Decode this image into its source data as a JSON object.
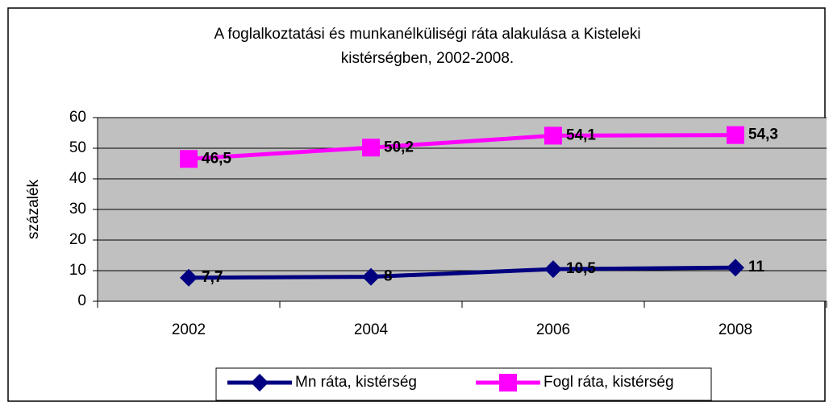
{
  "chart_data": {
    "type": "line",
    "title": "A foglalkoztatási és munkanélküliségi ráta alakulása a Kisteleki",
    "subtitle": "kistérségben, 2002-2008.",
    "y_label": "százalék",
    "categories": [
      "2002",
      "2004",
      "2006",
      "2008"
    ],
    "series": [
      {
        "name": "Mn ráta, kistérség",
        "color": "#000080",
        "marker": "diamond",
        "values": [
          7.7,
          8,
          10.5,
          11
        ],
        "value_labels": [
          "7,7",
          "8",
          "10,5",
          "11"
        ]
      },
      {
        "name": "Fogl ráta, kistérség",
        "color": "#ff00ff",
        "marker": "square",
        "values": [
          46.5,
          50.2,
          54.1,
          54.3
        ],
        "value_labels": [
          "46,5",
          "50,2",
          "54,1",
          "54,3"
        ]
      }
    ],
    "ylim": [
      0,
      60
    ],
    "yticks": [
      0,
      10,
      20,
      30,
      40,
      50,
      60
    ],
    "grid": true,
    "legend": "bottom"
  }
}
